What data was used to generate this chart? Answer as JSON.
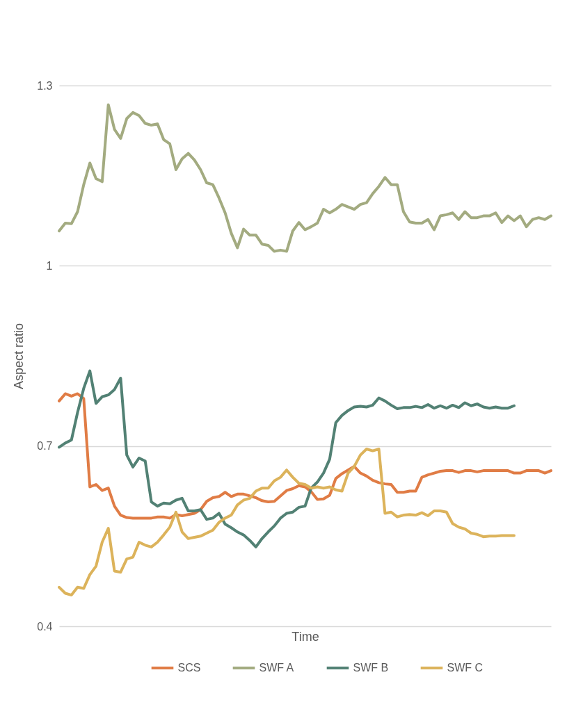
{
  "chart_data": {
    "type": "line",
    "xlabel": "Time",
    "ylabel": "Aspect ratio",
    "categories": [
      null,
      null,
      null,
      null,
      null,
      null,
      null,
      null,
      null,
      null,
      null,
      null,
      null,
      null,
      null,
      null,
      null,
      null,
      null,
      null,
      null,
      null,
      null,
      null,
      null,
      null,
      null,
      null,
      null,
      null,
      null,
      null,
      null,
      null,
      null,
      null,
      null,
      null,
      null,
      null,
      null,
      null,
      null,
      null,
      null,
      null,
      null,
      null,
      null,
      null,
      null,
      null,
      null,
      null,
      null,
      null,
      null,
      null,
      null,
      null,
      null,
      null,
      null,
      null,
      null,
      null,
      null,
      null,
      null,
      null,
      null,
      null,
      null,
      null,
      null,
      null,
      null,
      null,
      null,
      null,
      null
    ],
    "series": [
      {
        "name": "SCS",
        "color": "#e07c45",
        "values": [
          0.775,
          0.787,
          0.783,
          0.787,
          0.779,
          0.632,
          0.636,
          0.626,
          0.63,
          0.6,
          0.585,
          0.581,
          0.58,
          0.58,
          0.58,
          0.58,
          0.582,
          0.582,
          0.58,
          0.586,
          0.584,
          0.586,
          0.588,
          0.594,
          0.608,
          0.614,
          0.616,
          0.623,
          0.616,
          0.62,
          0.62,
          0.617,
          0.614,
          0.609,
          0.607,
          0.608,
          0.617,
          0.626,
          0.629,
          0.634,
          0.632,
          0.624,
          0.611,
          0.612,
          0.618,
          0.646,
          0.654,
          0.66,
          0.666,
          0.655,
          0.65,
          0.643,
          0.639,
          0.637,
          0.636,
          0.623,
          0.623,
          0.625,
          0.625,
          0.648,
          0.652,
          0.655,
          0.658,
          0.659,
          0.659,
          0.656,
          0.659,
          0.659,
          0.657,
          0.659,
          0.659,
          0.659,
          0.659,
          0.659,
          0.655,
          0.655,
          0.659,
          0.659,
          0.659,
          0.655,
          0.659
        ]
      },
      {
        "name": "SWF A",
        "color": "#a3ab80",
        "values": [
          1.058,
          1.071,
          1.07,
          1.09,
          1.135,
          1.171,
          1.145,
          1.14,
          1.268,
          1.227,
          1.212,
          1.245,
          1.255,
          1.25,
          1.237,
          1.234,
          1.236,
          1.21,
          1.203,
          1.16,
          1.178,
          1.187,
          1.176,
          1.16,
          1.138,
          1.135,
          1.113,
          1.088,
          1.054,
          1.03,
          1.061,
          1.051,
          1.051,
          1.036,
          1.034,
          1.024,
          1.026,
          1.024,
          1.058,
          1.072,
          1.06,
          1.065,
          1.071,
          1.094,
          1.088,
          1.094,
          1.102,
          1.098,
          1.094,
          1.102,
          1.105,
          1.12,
          1.132,
          1.147,
          1.135,
          1.135,
          1.09,
          1.073,
          1.071,
          1.071,
          1.077,
          1.06,
          1.083,
          1.085,
          1.088,
          1.077,
          1.09,
          1.08,
          1.08,
          1.083,
          1.083,
          1.088,
          1.072,
          1.083,
          1.075,
          1.083,
          1.065,
          1.077,
          1.08,
          1.077,
          1.083
        ]
      },
      {
        "name": "SWF B",
        "color": "#528174",
        "values": [
          0.698,
          0.705,
          0.71,
          0.756,
          0.796,
          0.825,
          0.771,
          0.782,
          0.785,
          0.794,
          0.813,
          0.685,
          0.665,
          0.68,
          0.675,
          0.607,
          0.6,
          0.605,
          0.604,
          0.61,
          0.613,
          0.592,
          0.592,
          0.594,
          0.578,
          0.58,
          0.588,
          0.57,
          0.564,
          0.557,
          0.552,
          0.543,
          0.532,
          0.546,
          0.557,
          0.567,
          0.58,
          0.588,
          0.59,
          0.598,
          0.6,
          0.63,
          0.64,
          0.655,
          0.678,
          0.739,
          0.751,
          0.759,
          0.765,
          0.766,
          0.765,
          0.768,
          0.78,
          0.775,
          0.768,
          0.762,
          0.764,
          0.764,
          0.766,
          0.764,
          0.769,
          0.763,
          0.767,
          0.763,
          0.768,
          0.764,
          0.772,
          0.767,
          0.77,
          0.765,
          0.763,
          0.765,
          0.763,
          0.763,
          0.767,
          null,
          null,
          null,
          null,
          null,
          null
        ]
      },
      {
        "name": "SWF C",
        "color": "#dcb35b",
        "values": [
          0.465,
          0.455,
          0.452,
          0.465,
          0.463,
          0.486,
          0.5,
          0.54,
          0.563,
          0.492,
          0.49,
          0.512,
          0.515,
          0.54,
          0.535,
          0.532,
          0.54,
          0.552,
          0.565,
          0.59,
          0.557,
          0.546,
          0.548,
          0.55,
          0.555,
          0.56,
          0.573,
          0.58,
          0.585,
          0.602,
          0.61,
          0.613,
          0.625,
          0.63,
          0.63,
          0.642,
          0.648,
          0.66,
          0.648,
          0.638,
          0.636,
          0.63,
          0.632,
          0.63,
          0.632,
          0.627,
          0.625,
          0.655,
          0.666,
          0.685,
          0.695,
          0.692,
          0.695,
          0.588,
          0.59,
          0.582,
          0.585,
          0.586,
          0.585,
          0.589,
          0.584,
          0.592,
          0.592,
          0.59,
          0.571,
          0.565,
          0.562,
          0.555,
          0.553,
          0.549,
          0.55,
          0.55,
          0.551,
          0.551,
          0.551,
          null,
          null,
          null,
          null,
          null,
          null
        ]
      }
    ],
    "ylim": [
      0.4,
      1.3
    ],
    "yticks": [
      0.4,
      0.7,
      1,
      1.3
    ],
    "grid": "y",
    "legend": "bottom",
    "tick_labels": "y",
    "line_style": "solid"
  }
}
